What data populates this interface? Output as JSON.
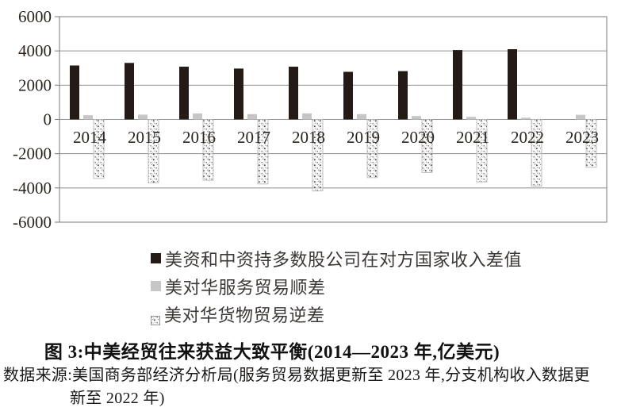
{
  "figure": {
    "title": "图 3:中美经贸往来获益大致平衡(2014—2023 年,亿美元)",
    "source_line1": "数据来源:美国商务部经济分析局(服务贸易数据更新至 2023 年,分支机构收入数据更",
    "source_line2": "新至 2022 年)"
  },
  "legend": {
    "items": [
      {
        "label": "美资和中资持多数股公司在对方国家收入差值",
        "swatch": "black"
      },
      {
        "label": "美对华服务贸易顺差",
        "swatch": "gray"
      },
      {
        "label": "美对华货物贸易逆差",
        "swatch": "speckle"
      }
    ]
  },
  "colors": {
    "bar_income": "#241b16",
    "bar_services": "#c6c6c6",
    "speckle_bg": "#f5f5f5",
    "grid": "#8f8f8f",
    "border": "#7a7a7a",
    "axis_text": "#2b2520"
  },
  "chart_data": {
    "type": "bar",
    "categories": [
      "2014",
      "2015",
      "2016",
      "2017",
      "2018",
      "2019",
      "2020",
      "2021",
      "2022",
      "2023"
    ],
    "series": [
      {
        "name": "美资和中资持多数股公司在对方国家收入差值",
        "fill": "#241b16",
        "values": [
          3150,
          3300,
          3080,
          2970,
          3080,
          2780,
          2820,
          4050,
          4100,
          null
        ]
      },
      {
        "name": "美对华服务贸易顺差",
        "fill": "#c6c6c6",
        "values": [
          250,
          280,
          350,
          310,
          350,
          310,
          200,
          150,
          100,
          270
        ]
      },
      {
        "name": "美对华货物贸易逆差",
        "fill": "speckle",
        "values": [
          -3450,
          -3700,
          -3550,
          -3770,
          -4180,
          -3400,
          -3100,
          -3650,
          -3900,
          -2800
        ]
      }
    ],
    "ylim": [
      -6000,
      6000
    ],
    "ytick_interval": 2000,
    "yticks": [
      "6000",
      "4000",
      "2000",
      "0",
      "-2000",
      "-4000",
      "-6000"
    ],
    "grid": "horizontal",
    "legend_position": "below-left",
    "xlabel": "",
    "ylabel": ""
  }
}
